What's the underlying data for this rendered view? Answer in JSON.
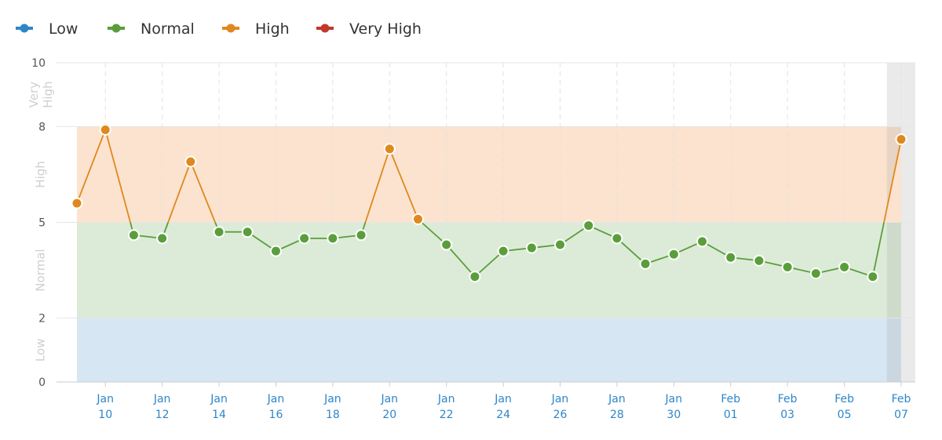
{
  "chart_data": {
    "type": "line",
    "legend": {
      "placement": "top-left",
      "items": [
        {
          "label": "Low",
          "color": "#2e86c8"
        },
        {
          "label": "Normal",
          "color": "#5a9e3c"
        },
        {
          "label": "High",
          "color": "#e0881f"
        },
        {
          "label": "Very High",
          "color": "#c0392b"
        }
      ]
    },
    "bands": [
      {
        "name": "Low",
        "label": "Low",
        "from": 0,
        "to": 2,
        "color": "#d6e6f3"
      },
      {
        "name": "Normal",
        "label": "Normal",
        "from": 2,
        "to": 5,
        "color": "#dcebd7"
      },
      {
        "name": "High",
        "label": "High",
        "from": 5,
        "to": 8,
        "color": "#fbe3cf"
      },
      {
        "name": "Very High",
        "label": "Very High",
        "from": 8,
        "to": 10,
        "color": "#f5d5d0"
      }
    ],
    "ylim": [
      0,
      10
    ],
    "yticks": [
      0,
      2,
      5,
      8,
      10
    ],
    "xticks": [
      {
        "date": "2019-01-10",
        "line1": "Jan",
        "line2": "10"
      },
      {
        "date": "2019-01-12",
        "line1": "Jan",
        "line2": "12"
      },
      {
        "date": "2019-01-14",
        "line1": "Jan",
        "line2": "14"
      },
      {
        "date": "2019-01-16",
        "line1": "Jan",
        "line2": "16"
      },
      {
        "date": "2019-01-18",
        "line1": "Jan",
        "line2": "18"
      },
      {
        "date": "2019-01-20",
        "line1": "Jan",
        "line2": "20"
      },
      {
        "date": "2019-01-22",
        "line1": "Jan",
        "line2": "22"
      },
      {
        "date": "2019-01-24",
        "line1": "Jan",
        "line2": "24"
      },
      {
        "date": "2019-01-26",
        "line1": "Jan",
        "line2": "26"
      },
      {
        "date": "2019-01-28",
        "line1": "Jan",
        "line2": "28"
      },
      {
        "date": "2019-01-30",
        "line1": "Jan",
        "line2": "30"
      },
      {
        "date": "2019-02-01",
        "line1": "Feb",
        "line2": "01"
      },
      {
        "date": "2019-02-03",
        "line1": "Feb",
        "line2": "03"
      },
      {
        "date": "2019-02-05",
        "line1": "Feb",
        "line2": "05"
      },
      {
        "date": "2019-02-07",
        "line1": "Feb",
        "line2": "07"
      }
    ],
    "xlim": [
      "2019-01-09",
      "2019-02-07"
    ],
    "highlight_range": [
      "2019-02-06",
      "2019-02-07"
    ],
    "grid": true,
    "colors": {
      "low": "#2e86c8",
      "normal": "#5a9e3c",
      "high": "#e0881f",
      "very_high": "#c0392b"
    },
    "points": [
      {
        "x": "2019-01-09",
        "y": 5.6
      },
      {
        "x": "2019-01-10",
        "y": 7.9
      },
      {
        "x": "2019-01-11",
        "y": 4.6
      },
      {
        "x": "2019-01-12",
        "y": 4.5
      },
      {
        "x": "2019-01-13",
        "y": 6.9
      },
      {
        "x": "2019-01-14",
        "y": 4.7
      },
      {
        "x": "2019-01-15",
        "y": 4.7
      },
      {
        "x": "2019-01-16",
        "y": 4.1
      },
      {
        "x": "2019-01-17",
        "y": 4.5
      },
      {
        "x": "2019-01-18",
        "y": 4.5
      },
      {
        "x": "2019-01-19",
        "y": 4.6
      },
      {
        "x": "2019-01-20",
        "y": 7.3
      },
      {
        "x": "2019-01-21",
        "y": 5.1
      },
      {
        "x": "2019-01-22",
        "y": 4.3
      },
      {
        "x": "2019-01-23",
        "y": 3.3
      },
      {
        "x": "2019-01-24",
        "y": 4.1
      },
      {
        "x": "2019-01-25",
        "y": 4.2
      },
      {
        "x": "2019-01-26",
        "y": 4.3
      },
      {
        "x": "2019-01-27",
        "y": 4.9
      },
      {
        "x": "2019-01-28",
        "y": 4.5
      },
      {
        "x": "2019-01-29",
        "y": 3.7
      },
      {
        "x": "2019-01-30",
        "y": 4.0
      },
      {
        "x": "2019-01-31",
        "y": 4.4
      },
      {
        "x": "2019-02-01",
        "y": 3.9
      },
      {
        "x": "2019-02-02",
        "y": 3.8
      },
      {
        "x": "2019-02-03",
        "y": 3.6
      },
      {
        "x": "2019-02-04",
        "y": 3.4
      },
      {
        "x": "2019-02-05",
        "y": 3.6
      },
      {
        "x": "2019-02-06",
        "y": 3.3
      },
      {
        "x": "2019-02-07",
        "y": 7.6
      }
    ]
  }
}
